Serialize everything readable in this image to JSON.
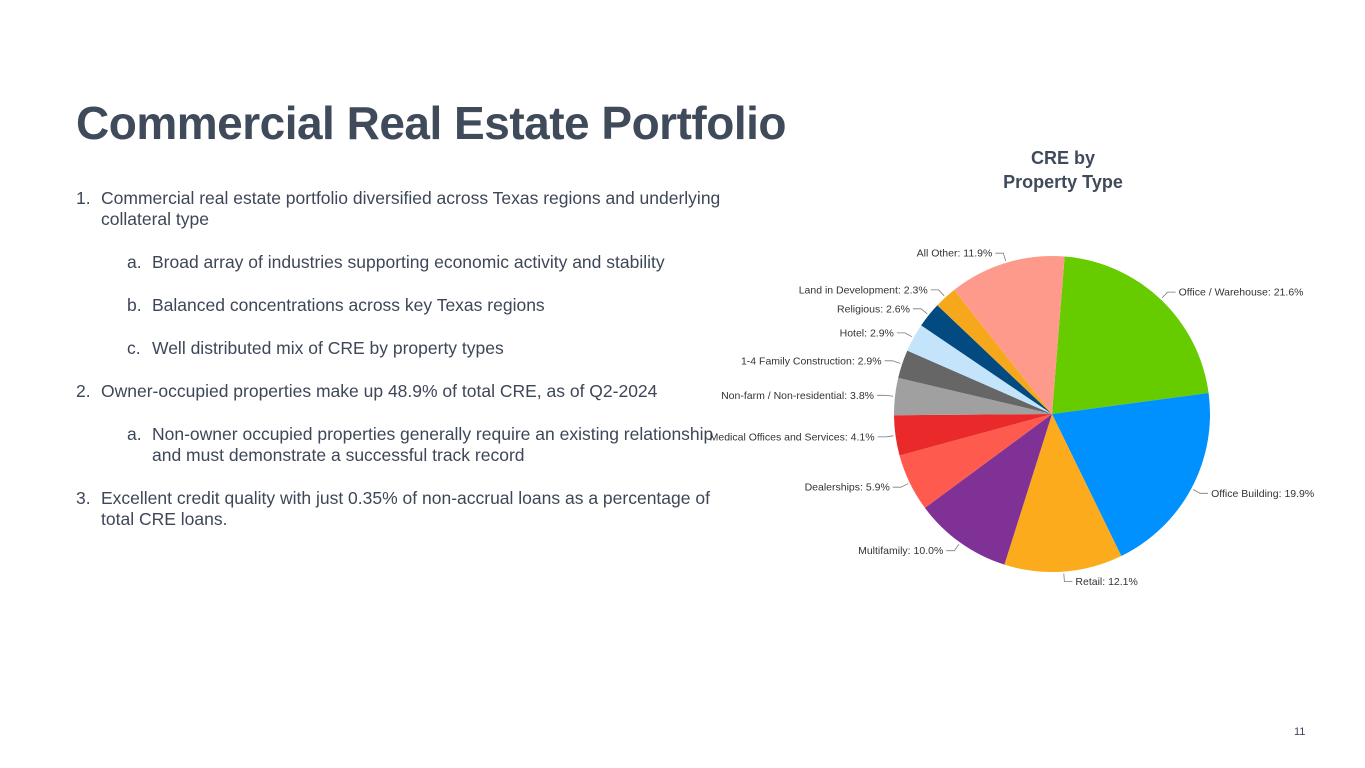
{
  "slide": {
    "title": "Commercial Real Estate Portfolio",
    "page_number": "11"
  },
  "bullets": [
    {
      "num": "1.",
      "text": "Commercial real estate portfolio diversified across Texas regions and underlying collateral type",
      "level": 1
    },
    {
      "num": "a.",
      "text": "Broad array of industries supporting economic activity and stability",
      "level": 2
    },
    {
      "num": "b.",
      "text": "Balanced concentrations across key Texas regions",
      "level": 2
    },
    {
      "num": "c.",
      "text": "Well distributed mix of CRE by property types",
      "level": 2
    },
    {
      "num": "2.",
      "text": "Owner-occupied properties make up 48.9% of total CRE, as of Q2-2024",
      "level": 1
    },
    {
      "num": "a.",
      "text": "Non-owner occupied properties generally require an existing relationship and must demonstrate a successful track record",
      "level": 2
    },
    {
      "num": "3.",
      "text": "Excellent credit quality with just 0.35% of non-accrual loans as a percentage of total CRE loans.",
      "level": 1
    }
  ],
  "chart_data": {
    "type": "pie",
    "title": "CRE by Property Type",
    "title_lines": [
      "CRE by",
      "Property Type"
    ],
    "slices": [
      {
        "label": "Office / Warehouse: 21.6%",
        "value": 21.6,
        "color": "#66cc00"
      },
      {
        "label": "Office Building: 19.9%",
        "value": 19.9,
        "color": "#0091ff"
      },
      {
        "label": "Retail: 12.1%",
        "value": 12.1,
        "color": "#fbab1b"
      },
      {
        "label": "Multifamily: 10.0%",
        "value": 10.0,
        "color": "#7f3196"
      },
      {
        "label": "Dealerships: 5.9%",
        "value": 5.9,
        "color": "#ff5a4e"
      },
      {
        "label": "Medical Offices and Services: 4.1%",
        "value": 4.1,
        "color": "#ea2a2a"
      },
      {
        "label": "Non-farm / Non-residential: 3.8%",
        "value": 3.8,
        "color": "#a0a0a0"
      },
      {
        "label": "1-4 Family Construction: 2.9%",
        "value": 2.9,
        "color": "#666666"
      },
      {
        "label": "Hotel: 2.9%",
        "value": 2.9,
        "color": "#c3e4fb"
      },
      {
        "label": "Religious: 2.6%",
        "value": 2.6,
        "color": "#024a80"
      },
      {
        "label": "Land in Development: 2.3%",
        "value": 2.3,
        "color": "#f6a81d"
      },
      {
        "label": "All Other: 11.9%",
        "value": 11.9,
        "color": "#fe9a8c"
      }
    ]
  }
}
